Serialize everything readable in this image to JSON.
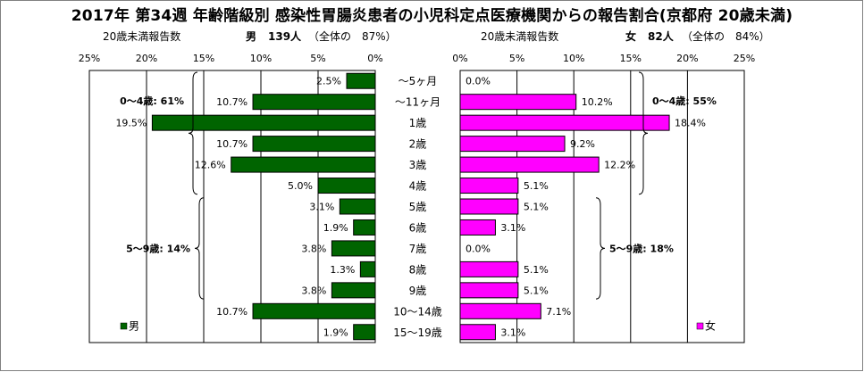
{
  "title": "2017年 第34週 年齢階級別 感染性胃腸炎患者の小児科定点医療機関からの報告割合(京都府 20歳未満)",
  "male_header": {
    "caption": "20歳未満報告数",
    "sex": "男",
    "count": "139人",
    "share": "（全体の　87%）"
  },
  "female_header": {
    "caption": "20歳未満報告数",
    "sex": "女",
    "count": "82人",
    "share": "（全体の　84%）"
  },
  "colors": {
    "male": "#006400",
    "female": "#FF00FF",
    "grid": "#000000",
    "frame": "#808080"
  },
  "chart_data": [
    {
      "type": "bar",
      "orientation": "horizontal-reversed",
      "series": [
        {
          "name": "男",
          "values": [
            2.5,
            10.7,
            19.5,
            10.7,
            12.6,
            5.0,
            3.1,
            1.9,
            3.8,
            1.3,
            3.8,
            10.7,
            1.9
          ]
        }
      ],
      "value_labels": [
        "2.5%",
        "10.7%",
        "19.5%",
        "10.7%",
        "12.6%",
        "5.0%",
        "3.1%",
        "1.9%",
        "3.8%",
        "1.3%",
        "3.8%",
        "10.7%",
        "1.9%"
      ],
      "xlim": [
        0,
        25
      ],
      "tick_labels": [
        "25%",
        "20%",
        "15%",
        "10%",
        "5%",
        "0%"
      ],
      "legend": "男",
      "legend_position": "bottom-left",
      "brackets": [
        {
          "label": "0〜4歳: 61%",
          "from_row": 0,
          "to_row": 5
        },
        {
          "label": "5〜9歳: 14%",
          "from_row": 6,
          "to_row": 10
        }
      ]
    },
    {
      "type": "bar",
      "orientation": "horizontal",
      "series": [
        {
          "name": "女",
          "values": [
            0.0,
            10.2,
            18.4,
            9.2,
            12.2,
            5.1,
            5.1,
            3.1,
            0.0,
            5.1,
            5.1,
            7.1,
            3.1
          ]
        }
      ],
      "value_labels": [
        "0.0%",
        "10.2%",
        "18.4%",
        "9.2%",
        "12.2%",
        "5.1%",
        "5.1%",
        "3.1%",
        "0.0%",
        "5.1%",
        "5.1%",
        "7.1%",
        "3.1%"
      ],
      "xlim": [
        0,
        25
      ],
      "tick_labels": [
        "0%",
        "5%",
        "10%",
        "15%",
        "20%",
        "25%"
      ],
      "legend": "女",
      "legend_position": "bottom-right",
      "brackets": [
        {
          "label": "0〜4歳: 55%",
          "from_row": 0,
          "to_row": 5
        },
        {
          "label": "5〜9歳: 18%",
          "from_row": 6,
          "to_row": 10
        }
      ]
    }
  ],
  "categories": [
    "〜5ヶ月",
    "〜11ヶ月",
    "1歳",
    "2歳",
    "3歳",
    "4歳",
    "5歳",
    "6歳",
    "7歳",
    "8歳",
    "9歳",
    "10〜14歳",
    "15〜19歳"
  ]
}
